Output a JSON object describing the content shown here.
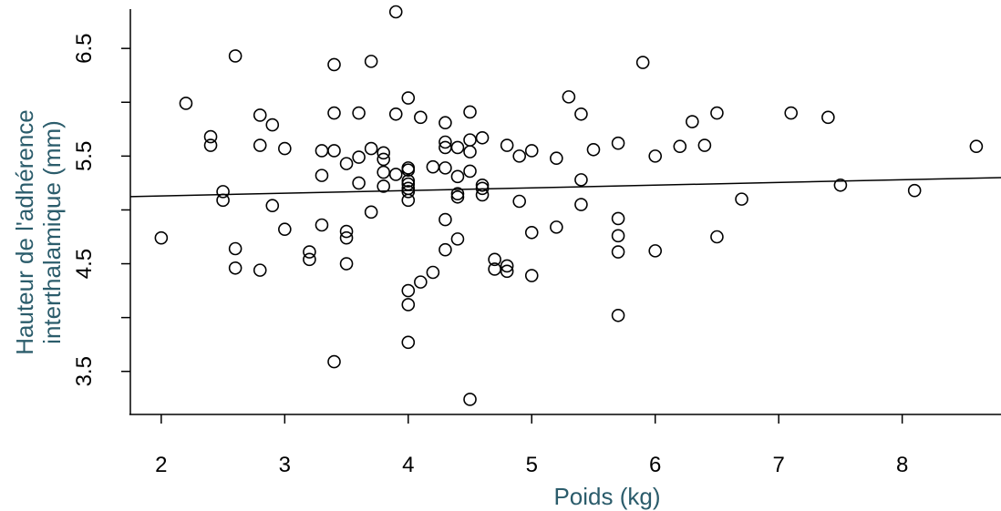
{
  "chart_data": {
    "type": "scatter",
    "title": "",
    "xlabel": "Poids (kg)",
    "ylabel_line1": "Hauteur de l'adhérence",
    "ylabel_line2": "interthalamique (mm)",
    "xlim": [
      1.75,
      8.8
    ],
    "ylim": [
      3.1,
      6.95
    ],
    "x_ticks": [
      2,
      3,
      4,
      5,
      6,
      7,
      8
    ],
    "x_tick_labels": [
      "2",
      "3",
      "4",
      "5",
      "6",
      "7",
      "8"
    ],
    "y_ticks": [
      3.5,
      4.0,
      4.5,
      5.0,
      5.5,
      6.0,
      6.5
    ],
    "y_tick_labels": [
      "3.5",
      "",
      "4.5",
      "",
      "5.5",
      "",
      "6.5"
    ],
    "grid": false,
    "label_color": "#2b5c6b",
    "point_color": "#000000",
    "regression_line": {
      "intercept": 5.08,
      "slope": 0.025
    },
    "points": [
      [
        2.0,
        4.74
      ],
      [
        2.2,
        5.99
      ],
      [
        2.4,
        5.68
      ],
      [
        2.4,
        5.6
      ],
      [
        2.5,
        5.17
      ],
      [
        2.5,
        5.09
      ],
      [
        2.6,
        6.43
      ],
      [
        2.6,
        4.64
      ],
      [
        2.6,
        4.46
      ],
      [
        2.8,
        5.88
      ],
      [
        2.8,
        5.6
      ],
      [
        2.8,
        4.44
      ],
      [
        2.9,
        5.79
      ],
      [
        2.9,
        5.04
      ],
      [
        3.0,
        5.57
      ],
      [
        3.0,
        4.82
      ],
      [
        3.2,
        4.61
      ],
      [
        3.2,
        4.54
      ],
      [
        3.3,
        5.55
      ],
      [
        3.3,
        5.32
      ],
      [
        3.3,
        4.86
      ],
      [
        3.4,
        6.35
      ],
      [
        3.4,
        5.9
      ],
      [
        3.4,
        5.55
      ],
      [
        3.4,
        3.59
      ],
      [
        3.5,
        5.43
      ],
      [
        3.5,
        4.8
      ],
      [
        3.5,
        4.74
      ],
      [
        3.5,
        4.5
      ],
      [
        3.6,
        5.9
      ],
      [
        3.6,
        5.49
      ],
      [
        3.6,
        5.25
      ],
      [
        3.7,
        6.38
      ],
      [
        3.7,
        5.57
      ],
      [
        3.7,
        4.98
      ],
      [
        3.8,
        5.53
      ],
      [
        3.8,
        5.47
      ],
      [
        3.8,
        5.35
      ],
      [
        3.8,
        5.22
      ],
      [
        3.9,
        6.84
      ],
      [
        3.9,
        5.89
      ],
      [
        3.9,
        5.33
      ],
      [
        4.0,
        6.04
      ],
      [
        4.0,
        5.39
      ],
      [
        4.0,
        5.37
      ],
      [
        4.0,
        5.27
      ],
      [
        4.0,
        5.24
      ],
      [
        4.0,
        5.2
      ],
      [
        4.0,
        5.17
      ],
      [
        4.0,
        5.09
      ],
      [
        4.0,
        4.25
      ],
      [
        4.0,
        4.12
      ],
      [
        4.0,
        3.77
      ],
      [
        4.1,
        5.86
      ],
      [
        4.1,
        4.33
      ],
      [
        4.2,
        5.4
      ],
      [
        4.2,
        4.42
      ],
      [
        4.3,
        5.81
      ],
      [
        4.3,
        5.63
      ],
      [
        4.3,
        5.58
      ],
      [
        4.3,
        5.39
      ],
      [
        4.3,
        4.91
      ],
      [
        4.3,
        4.63
      ],
      [
        4.4,
        5.58
      ],
      [
        4.4,
        5.31
      ],
      [
        4.4,
        5.15
      ],
      [
        4.4,
        5.12
      ],
      [
        4.4,
        4.73
      ],
      [
        4.5,
        5.91
      ],
      [
        4.5,
        5.65
      ],
      [
        4.5,
        5.54
      ],
      [
        4.5,
        5.36
      ],
      [
        4.5,
        3.24
      ],
      [
        4.6,
        5.67
      ],
      [
        4.6,
        5.23
      ],
      [
        4.6,
        5.2
      ],
      [
        4.6,
        5.14
      ],
      [
        4.7,
        4.54
      ],
      [
        4.7,
        4.45
      ],
      [
        4.8,
        5.6
      ],
      [
        4.8,
        4.48
      ],
      [
        4.8,
        4.43
      ],
      [
        4.9,
        5.5
      ],
      [
        4.9,
        5.08
      ],
      [
        5.0,
        5.55
      ],
      [
        5.0,
        4.79
      ],
      [
        5.0,
        4.39
      ],
      [
        5.2,
        5.48
      ],
      [
        5.2,
        4.84
      ],
      [
        5.3,
        6.05
      ],
      [
        5.4,
        5.89
      ],
      [
        5.4,
        5.28
      ],
      [
        5.4,
        5.05
      ],
      [
        5.5,
        5.56
      ],
      [
        5.7,
        5.62
      ],
      [
        5.7,
        4.92
      ],
      [
        5.7,
        4.76
      ],
      [
        5.7,
        4.61
      ],
      [
        5.7,
        4.02
      ],
      [
        5.9,
        6.37
      ],
      [
        6.0,
        5.5
      ],
      [
        6.0,
        4.62
      ],
      [
        6.2,
        5.59
      ],
      [
        6.3,
        5.82
      ],
      [
        6.4,
        5.6
      ],
      [
        6.5,
        5.9
      ],
      [
        6.5,
        4.75
      ],
      [
        6.7,
        5.1
      ],
      [
        7.1,
        5.9
      ],
      [
        7.4,
        5.86
      ],
      [
        7.5,
        5.23
      ],
      [
        8.1,
        5.18
      ],
      [
        8.6,
        5.59
      ]
    ]
  }
}
